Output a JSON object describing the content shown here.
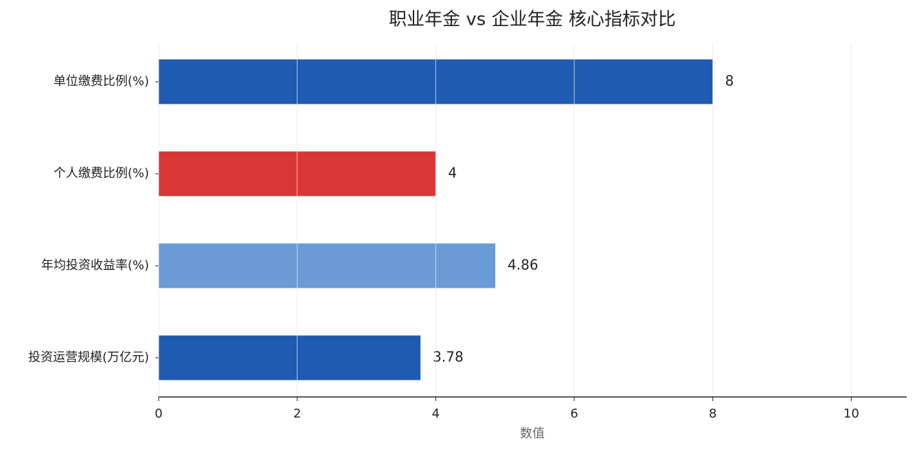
{
  "chart_data": {
    "type": "barh",
    "title": "职业年金 vs 企业年金 核心指标对比",
    "xlabel": "数值",
    "categories": [
      "单位缴费比例(%)",
      "个人缴费比例(%)",
      "年均投资收益率(%)",
      "投资运营规模(万亿元)"
    ],
    "values": [
      8,
      4,
      4.86,
      3.78
    ],
    "colors": [
      "#1f5bb0",
      "#d93636",
      "#6b9bd4",
      "#1f5bb0"
    ],
    "xlim": [
      0,
      10.8
    ],
    "xticks": [
      0,
      2,
      4,
      6,
      8,
      10
    ],
    "grid": true
  }
}
